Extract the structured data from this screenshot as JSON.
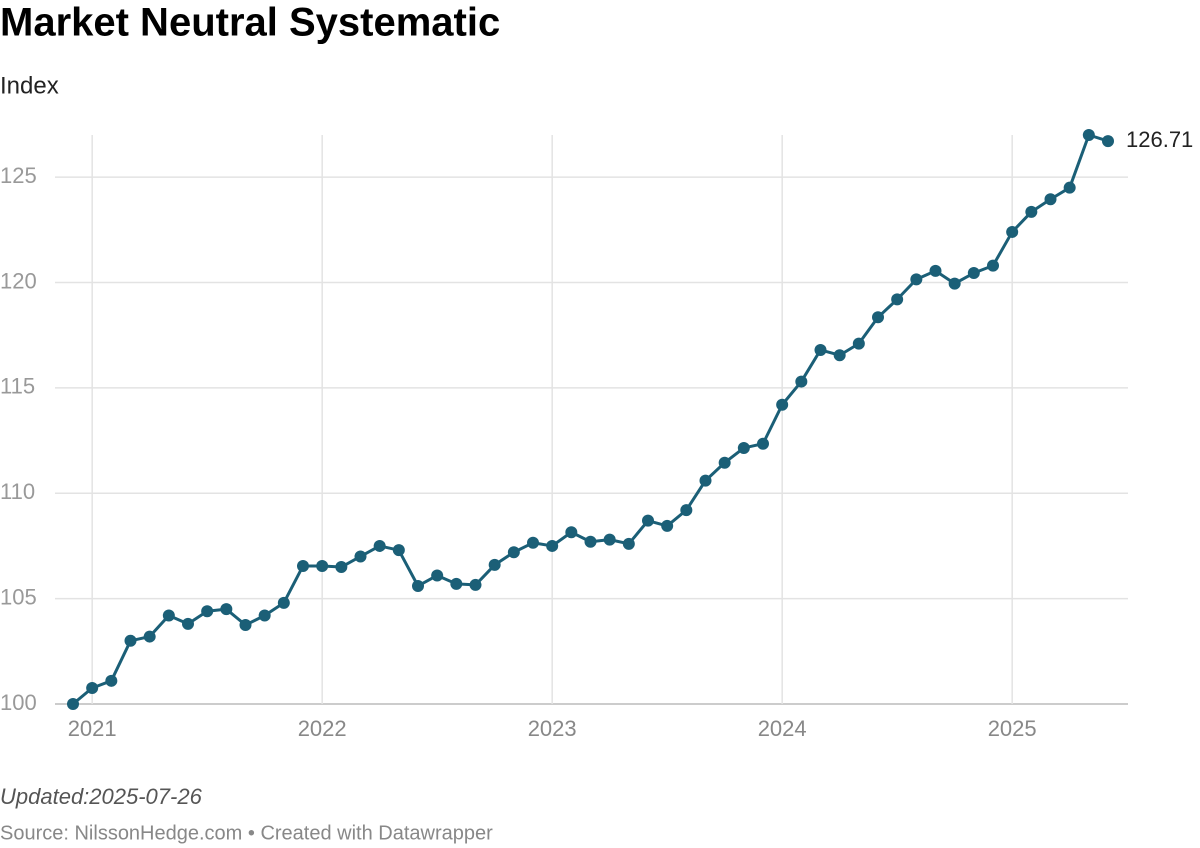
{
  "chart_data": {
    "type": "line",
    "title": "Market Neutral Systematic",
    "subtitle": "Index",
    "updated": "Updated:2025-07-26",
    "source": "Source: NilssonHedge.com • Created with Datawrapper",
    "x": [
      "2020-12",
      "2021-01",
      "2021-02",
      "2021-03",
      "2021-04",
      "2021-05",
      "2021-06",
      "2021-07",
      "2021-08",
      "2021-09",
      "2021-10",
      "2021-11",
      "2021-12",
      "2022-01",
      "2022-02",
      "2022-03",
      "2022-04",
      "2022-05",
      "2022-06",
      "2022-07",
      "2022-08",
      "2022-09",
      "2022-10",
      "2022-11",
      "2022-12",
      "2023-01",
      "2023-02",
      "2023-03",
      "2023-04",
      "2023-05",
      "2023-06",
      "2023-07",
      "2023-08",
      "2023-09",
      "2023-10",
      "2023-11",
      "2023-12",
      "2024-01",
      "2024-02",
      "2024-03",
      "2024-04",
      "2024-05",
      "2024-06",
      "2024-07",
      "2024-08",
      "2024-09",
      "2024-10",
      "2024-11",
      "2024-12",
      "2025-01",
      "2025-02",
      "2025-03",
      "2025-04",
      "2025-05",
      "2025-06"
    ],
    "series": [
      {
        "name": "Market Neutral Systematic",
        "color": "#1b5f77",
        "values": [
          100.0,
          100.76,
          101.1,
          103.0,
          103.2,
          104.2,
          103.8,
          104.4,
          104.5,
          103.75,
          104.2,
          104.8,
          106.55,
          106.55,
          106.5,
          107.0,
          107.5,
          107.3,
          105.6,
          106.1,
          105.7,
          105.65,
          106.6,
          107.2,
          107.65,
          107.5,
          108.15,
          107.7,
          107.8,
          107.6,
          108.7,
          108.45,
          109.2,
          110.6,
          111.45,
          112.15,
          112.35,
          114.2,
          115.3,
          116.8,
          116.55,
          117.1,
          118.35,
          119.2,
          120.15,
          120.55,
          119.95,
          120.45,
          120.8,
          122.4,
          123.35,
          123.95,
          124.5,
          127.0,
          126.71
        ]
      }
    ],
    "xlim": [
      "2020-12",
      "2025-06"
    ],
    "xticks": [
      "2021",
      "2022",
      "2023",
      "2024",
      "2025"
    ],
    "ylim": [
      100,
      127
    ],
    "yticks": [
      100,
      105,
      110,
      115,
      120,
      125
    ],
    "grid": true
  }
}
